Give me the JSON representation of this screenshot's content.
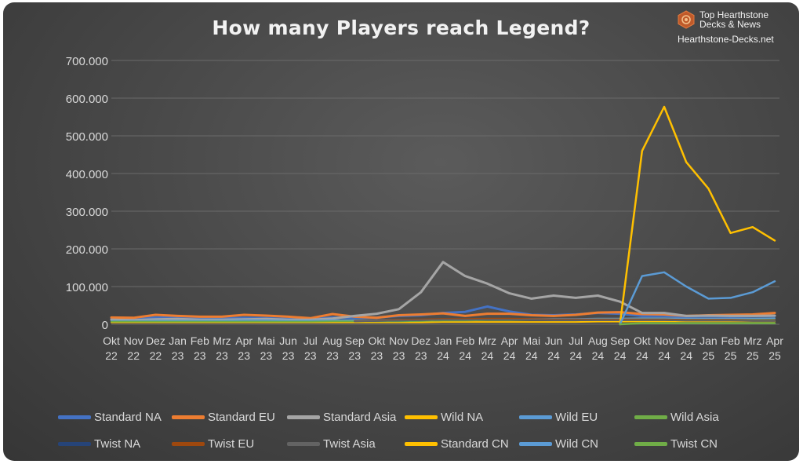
{
  "brand": {
    "line1": "Top Hearthstone",
    "line2": "Decks & News",
    "url": "Hearthstone-Decks.net"
  },
  "chart_data": {
    "type": "line",
    "title": "How many Players reach Legend?",
    "xlabel": "",
    "ylabel": "",
    "ylim": [
      0,
      700000
    ],
    "yticks": [
      0,
      100000,
      200000,
      300000,
      400000,
      500000,
      600000,
      700000
    ],
    "ytick_labels": [
      "0",
      "100.000",
      "200.000",
      "300.000",
      "400.000",
      "500.000",
      "600.000",
      "700.000"
    ],
    "grid": true,
    "legend_position": "bottom",
    "categories": [
      {
        "month": "Okt",
        "year": "22"
      },
      {
        "month": "Nov",
        "year": "22"
      },
      {
        "month": "Dez",
        "year": "22"
      },
      {
        "month": "Jan",
        "year": "23"
      },
      {
        "month": "Feb",
        "year": "23"
      },
      {
        "month": "Mrz",
        "year": "23"
      },
      {
        "month": "Apr",
        "year": "23"
      },
      {
        "month": "Mai",
        "year": "23"
      },
      {
        "month": "Jun",
        "year": "23"
      },
      {
        "month": "Jul",
        "year": "23"
      },
      {
        "month": "Aug",
        "year": "23"
      },
      {
        "month": "Sep",
        "year": "23"
      },
      {
        "month": "Okt",
        "year": "23"
      },
      {
        "month": "Nov",
        "year": "23"
      },
      {
        "month": "Dez",
        "year": "23"
      },
      {
        "month": "Jan",
        "year": "24"
      },
      {
        "month": "Feb",
        "year": "24"
      },
      {
        "month": "Mrz",
        "year": "24"
      },
      {
        "month": "Apr",
        "year": "24"
      },
      {
        "month": "Mai",
        "year": "24"
      },
      {
        "month": "Jun",
        "year": "24"
      },
      {
        "month": "Jul",
        "year": "24"
      },
      {
        "month": "Aug",
        "year": "24"
      },
      {
        "month": "Sep",
        "year": "24"
      },
      {
        "month": "Okt",
        "year": "24"
      },
      {
        "month": "Nov",
        "year": "24"
      },
      {
        "month": "Dez",
        "year": "24"
      },
      {
        "month": "Jan",
        "year": "25"
      },
      {
        "month": "Feb",
        "year": "25"
      },
      {
        "month": "Mrz",
        "year": "25"
      },
      {
        "month": "Apr",
        "year": "25"
      }
    ],
    "series": [
      {
        "name": "Standard NA",
        "color": "#4472c4",
        "width": 3,
        "values": [
          15000,
          14000,
          18000,
          17000,
          15000,
          15000,
          17000,
          16000,
          14000,
          13000,
          18000,
          17000,
          18000,
          22000,
          24000,
          30000,
          33000,
          47000,
          34000,
          25000,
          24000,
          26000,
          30000,
          28000,
          22000,
          22000,
          20000,
          21000,
          20000,
          21000,
          22000
        ]
      },
      {
        "name": "Standard EU",
        "color": "#ed7d31",
        "width": 3,
        "values": [
          18000,
          17000,
          25000,
          22000,
          20000,
          20000,
          25000,
          23000,
          20000,
          16000,
          27000,
          20000,
          17000,
          24000,
          26000,
          29000,
          22000,
          28000,
          28000,
          24000,
          22000,
          25000,
          31000,
          32000,
          27000,
          26000,
          22000,
          24000,
          25000,
          26000,
          30000
        ]
      },
      {
        "name": "Standard Asia",
        "color": "#a5a5a5",
        "width": 3,
        "values": [
          12000,
          11000,
          13000,
          14000,
          12000,
          12000,
          13000,
          14000,
          12000,
          12000,
          15000,
          22000,
          28000,
          40000,
          85000,
          165000,
          128000,
          108000,
          82000,
          68000,
          76000,
          70000,
          76000,
          60000,
          30000,
          30000,
          22000,
          23000,
          22000,
          22000,
          23000
        ]
      },
      {
        "name": "Wild NA",
        "color": "#ffc000",
        "width": 2,
        "values": [
          5000,
          5000,
          5000,
          5000,
          5000,
          5000,
          5000,
          5000,
          5000,
          5000,
          5000,
          5000,
          5000,
          5000,
          5000,
          6000,
          6000,
          6000,
          6000,
          6000,
          6000,
          6000,
          7000,
          7000,
          8000,
          8000,
          8000,
          8000,
          8000,
          8000,
          8000
        ]
      },
      {
        "name": "Wild EU",
        "color": "#5b9bd5",
        "width": 2,
        "values": [
          9000,
          9000,
          10000,
          10000,
          10000,
          10000,
          11000,
          11000,
          10000,
          10000,
          11000,
          11000,
          11000,
          12000,
          12000,
          13000,
          13000,
          14000,
          14000,
          14000,
          14000,
          14000,
          15000,
          15000,
          16000,
          16000,
          15000,
          15000,
          15000,
          15000,
          16000
        ]
      },
      {
        "name": "Wild Asia",
        "color": "#70ad47",
        "width": 2,
        "values": [
          7000,
          7000,
          7000,
          7000,
          7000,
          7000,
          7000,
          7000,
          7000,
          7000,
          8000,
          8000,
          8000,
          8000,
          9000,
          10000,
          10000,
          11000,
          11000,
          12000,
          12000,
          12000,
          13000,
          13000,
          13000,
          13000,
          12000,
          12000,
          12000,
          12000,
          12000
        ]
      },
      {
        "name": "Twist NA",
        "color": "#264478",
        "width": 2,
        "values": [
          null,
          null,
          null,
          null,
          null,
          null,
          null,
          null,
          null,
          null,
          null,
          8000,
          9000,
          10000,
          11000,
          12000,
          12000,
          13000,
          13000,
          12000,
          11000,
          11000,
          11000,
          11000,
          11000,
          11000,
          10000,
          10000,
          10000,
          9000,
          9000
        ]
      },
      {
        "name": "Twist EU",
        "color": "#9e480e",
        "width": 2,
        "values": [
          null,
          null,
          null,
          null,
          null,
          null,
          null,
          null,
          null,
          null,
          null,
          9000,
          10000,
          12000,
          13000,
          14000,
          14000,
          15000,
          15000,
          14000,
          13000,
          13000,
          13000,
          13000,
          13000,
          13000,
          12000,
          12000,
          12000,
          11000,
          11000
        ]
      },
      {
        "name": "Twist Asia",
        "color": "#636363",
        "width": 2,
        "values": [
          null,
          null,
          null,
          null,
          null,
          null,
          null,
          null,
          null,
          null,
          null,
          8000,
          9000,
          10000,
          11000,
          12000,
          12000,
          12000,
          12000,
          12000,
          11000,
          11000,
          11000,
          11000,
          11000,
          11000,
          10000,
          10000,
          10000,
          10000,
          10000
        ]
      },
      {
        "name": "Standard CN",
        "color": "#ffc000",
        "width": 2.5,
        "values": [
          null,
          null,
          null,
          null,
          null,
          null,
          null,
          null,
          null,
          null,
          null,
          null,
          null,
          null,
          null,
          null,
          null,
          null,
          null,
          null,
          null,
          null,
          null,
          0,
          460000,
          577000,
          430000,
          360000,
          242000,
          258000,
          222000
        ]
      },
      {
        "name": "Wild CN",
        "color": "#5b9bd5",
        "width": 2.5,
        "values": [
          null,
          null,
          null,
          null,
          null,
          null,
          null,
          null,
          null,
          null,
          null,
          null,
          null,
          null,
          null,
          null,
          null,
          null,
          null,
          null,
          null,
          null,
          null,
          0,
          128000,
          138000,
          100000,
          68000,
          70000,
          85000,
          114000
        ]
      },
      {
        "name": "Twist CN",
        "color": "#70ad47",
        "width": 2.5,
        "values": [
          null,
          null,
          null,
          null,
          null,
          null,
          null,
          null,
          null,
          null,
          null,
          null,
          null,
          null,
          null,
          null,
          null,
          null,
          null,
          null,
          null,
          null,
          null,
          0,
          3000,
          3000,
          3000,
          3000,
          3000,
          3000,
          3000
        ]
      }
    ]
  }
}
